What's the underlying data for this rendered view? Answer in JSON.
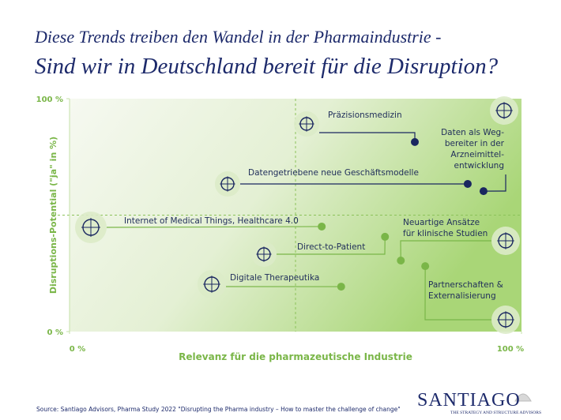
{
  "title_line1": "Diese Trends treiben den Wandel in der Pharmaindustrie -",
  "title_line2": "Sind wir in Deutschland bereit für die Disruption?",
  "chart_data": {
    "type": "scatter",
    "x_label": "Relevanz für die pharmazeutische Industrie",
    "y_label": "Disruptions-Potential (\"ja\" in %)",
    "xlim": [
      0,
      100
    ],
    "ylim": [
      0,
      100
    ],
    "xticks": [
      {
        "value": 0,
        "label": "0 %"
      },
      {
        "value": 100,
        "label": "100 %"
      }
    ],
    "yticks": [
      {
        "value": 0,
        "label": "0 %"
      },
      {
        "value": 100,
        "label": "100 %"
      }
    ],
    "points": [
      {
        "label": "Präzisionsmedizin",
        "x": 76.4,
        "y": 81.4,
        "color": "#1a2760"
      },
      {
        "label": "Datengetriebene neue Geschäftsmodelle",
        "x": 88.1,
        "y": 63.4,
        "color": "#1a2760"
      },
      {
        "label": "Daten als Weg-\nbereiter in der\nArzneimittel-\nentwicklung",
        "x": 91.6,
        "y": 60.3,
        "color": "#1a2760"
      },
      {
        "label": "Internet of Medical Things, Healthcare 4.0",
        "x": 55.8,
        "y": 45.1,
        "color": "#7ab648"
      },
      {
        "label": "Direct-to-Patient",
        "x": 69.8,
        "y": 40.7,
        "color": "#7ab648"
      },
      {
        "label": "Neuartige Ansätze\nfür klinische Studien",
        "x": 73.3,
        "y": 30.5,
        "color": "#7ab648"
      },
      {
        "label": "Partnerschaften &\nExternalisierung",
        "x": 78.7,
        "y": 28.1,
        "color": "#7ab648"
      },
      {
        "label": "Digitale Therapeutika",
        "x": 60.1,
        "y": 19.3,
        "color": "#7ab648"
      }
    ]
  },
  "source": "Source: Santiago Advisors, Pharma Study 2022 \"Disrupting the Pharma industry – How to master the challenge of change\"",
  "logo": "SANTIAGO",
  "tagline": "THE STRATEGY AND STRUCTURE ADVISORS"
}
